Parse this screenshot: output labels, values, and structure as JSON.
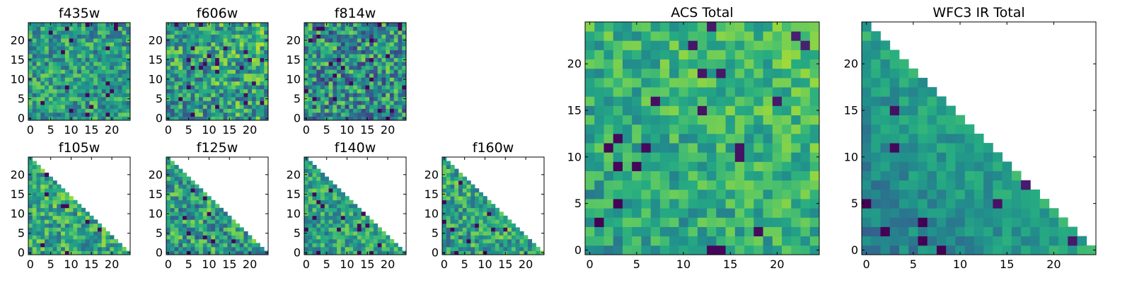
{
  "chart_data": [
    {
      "type": "heatmap",
      "title": "f435w",
      "mask": "full",
      "seed": 11,
      "colorbias": 0.55,
      "spread": 0.25,
      "gradient": 0,
      "xticks": [
        0,
        5,
        10,
        15,
        20
      ],
      "yticks": [
        0,
        5,
        10,
        15,
        20
      ],
      "xlim": [
        -0.5,
        24.5
      ],
      "ylim": [
        -0.5,
        24.5
      ]
    },
    {
      "type": "heatmap",
      "title": "f606w",
      "mask": "full",
      "seed": 23,
      "colorbias": 0.55,
      "spread": 0.3,
      "gradient": 0.1,
      "xticks": [
        0,
        5,
        10,
        15,
        20
      ],
      "yticks": [
        0,
        5,
        10,
        15,
        20
      ],
      "xlim": [
        -0.5,
        24.5
      ],
      "ylim": [
        -0.5,
        24.5
      ]
    },
    {
      "type": "heatmap",
      "title": "f814w",
      "mask": "full",
      "seed": 37,
      "colorbias": 0.5,
      "spread": 0.32,
      "gradient": 0,
      "xticks": [
        0,
        5,
        10,
        15,
        20
      ],
      "yticks": [
        0,
        5,
        10,
        15,
        20
      ],
      "xlim": [
        -0.5,
        24.5
      ],
      "ylim": [
        -0.5,
        24.5
      ]
    },
    {
      "type": "heatmap",
      "title": "f105w",
      "mask": "triangle",
      "seed": 41,
      "colorbias": 0.6,
      "spread": 0.25,
      "gradient": 0.05,
      "xticks": [
        0,
        5,
        10,
        15,
        20
      ],
      "yticks": [
        0,
        5,
        10,
        15,
        20
      ],
      "xlim": [
        -0.5,
        24.5
      ],
      "ylim": [
        -0.5,
        24.5
      ]
    },
    {
      "type": "heatmap",
      "title": "f125w",
      "mask": "triangle",
      "seed": 53,
      "colorbias": 0.55,
      "spread": 0.28,
      "gradient": 0.05,
      "xticks": [
        0,
        5,
        10,
        15,
        20
      ],
      "yticks": [
        0,
        5,
        10,
        15,
        20
      ],
      "xlim": [
        -0.5,
        24.5
      ],
      "ylim": [
        -0.5,
        24.5
      ]
    },
    {
      "type": "heatmap",
      "title": "f140w",
      "mask": "triangle",
      "seed": 67,
      "colorbias": 0.58,
      "spread": 0.22,
      "gradient": 0.1,
      "xticks": [
        0,
        5,
        10,
        15,
        20
      ],
      "yticks": [
        0,
        5,
        10,
        15,
        20
      ],
      "xlim": [
        -0.5,
        24.5
      ],
      "ylim": [
        -0.5,
        24.5
      ]
    },
    {
      "type": "heatmap",
      "title": "f160w",
      "mask": "triangle",
      "seed": 79,
      "colorbias": 0.58,
      "spread": 0.25,
      "gradient": 0.12,
      "xticks": [
        0,
        5,
        10,
        15,
        20
      ],
      "yticks": [
        0,
        5,
        10,
        15,
        20
      ],
      "xlim": [
        -0.5,
        24.5
      ],
      "ylim": [
        -0.5,
        24.5
      ]
    },
    {
      "type": "heatmap",
      "title": "ACS Total",
      "mask": "full",
      "seed": 97,
      "colorbias": 0.6,
      "spread": 0.18,
      "gradient": 0.15,
      "xticks": [
        0,
        5,
        10,
        15,
        20
      ],
      "yticks": [
        0,
        5,
        10,
        15,
        20
      ],
      "xlim": [
        -0.5,
        24.5
      ],
      "ylim": [
        -0.5,
        24.5
      ]
    },
    {
      "type": "heatmap",
      "title": "WFC3 IR Total",
      "mask": "triangle",
      "seed": 113,
      "colorbias": 0.5,
      "spread": 0.12,
      "gradient": 0.35,
      "xticks": [
        0,
        5,
        10,
        15,
        20
      ],
      "yticks": [
        0,
        5,
        10,
        15,
        20
      ],
      "xlim": [
        -0.5,
        24.5
      ],
      "ylim": [
        -0.5,
        24.5
      ]
    }
  ]
}
